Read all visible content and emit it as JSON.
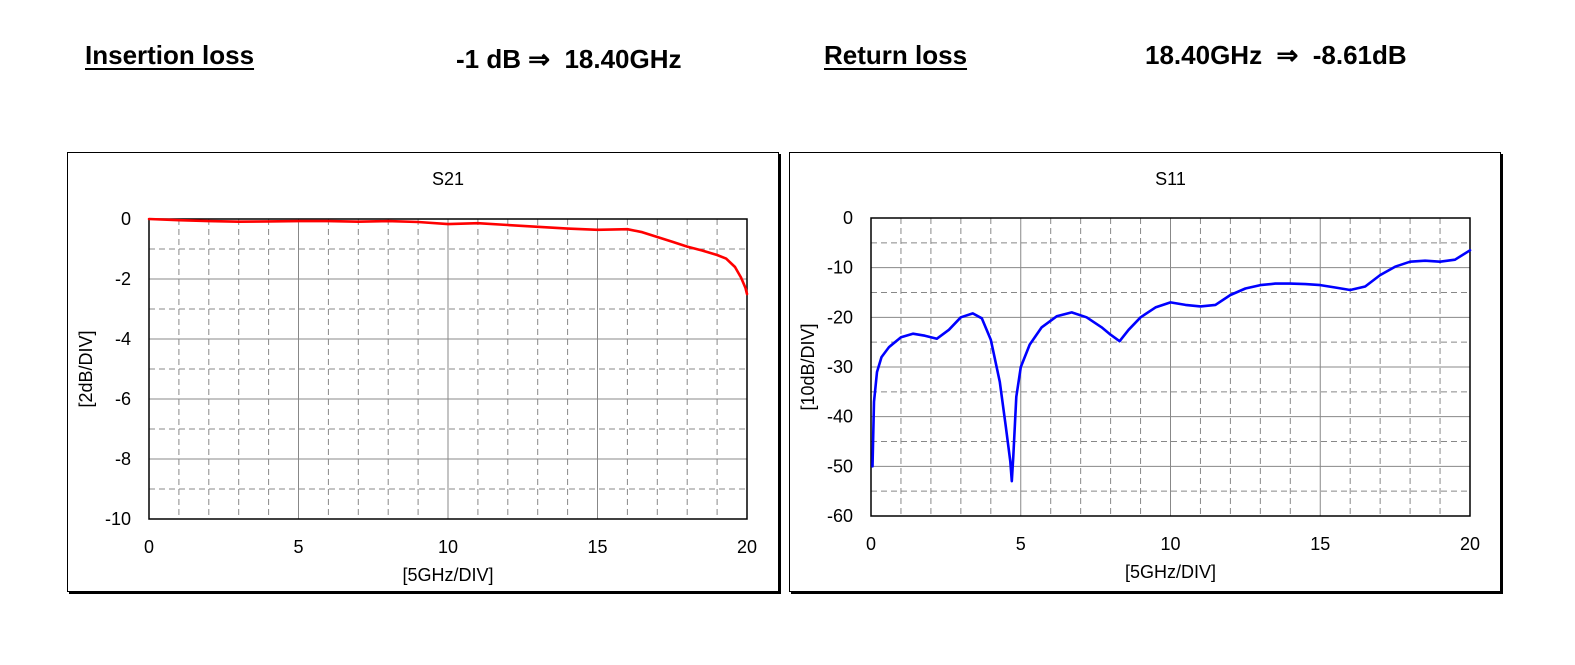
{
  "header": {
    "insertion_label": "Insertion loss",
    "insertion_value": "-1 dB ⇒  18.40GHz",
    "return_label": "Return loss",
    "return_value": "18.40GHz  ⇒  -8.61dB"
  },
  "chart_data": [
    {
      "type": "line",
      "title": "S21",
      "xlabel": "[5GHz/DIV]",
      "ylabel": "[2dB/DIV]",
      "xlim": [
        0,
        20
      ],
      "ylim": [
        -10,
        0
      ],
      "xticks": [
        "0",
        "5",
        "10",
        "15",
        "20"
      ],
      "yticks": [
        "0",
        "-2",
        "-4",
        "-6",
        "-8",
        "-10"
      ],
      "grid": true,
      "color": "#ff0000",
      "series": [
        {
          "x": [
            0,
            1,
            2,
            3,
            4,
            5,
            6,
            7,
            8,
            9,
            10,
            11,
            12,
            13,
            14,
            15,
            16,
            16.5,
            17,
            17.5,
            18,
            18.5,
            19,
            19.3,
            19.6,
            19.8,
            19.95,
            20
          ],
          "y": [
            0,
            -0.04,
            -0.07,
            -0.09,
            -0.08,
            -0.07,
            -0.07,
            -0.09,
            -0.07,
            -0.1,
            -0.17,
            -0.14,
            -0.2,
            -0.26,
            -0.32,
            -0.36,
            -0.34,
            -0.44,
            -0.6,
            -0.76,
            -0.92,
            -1.05,
            -1.2,
            -1.32,
            -1.6,
            -1.95,
            -2.3,
            -2.5
          ]
        }
      ]
    },
    {
      "type": "line",
      "title": "S11",
      "xlabel": "[5GHz/DIV]",
      "ylabel": "[10dB/DIV]",
      "xlim": [
        0,
        20
      ],
      "ylim": [
        -60,
        0
      ],
      "xticks": [
        "0",
        "5",
        "10",
        "15",
        "20"
      ],
      "yticks": [
        "0",
        "-10",
        "-20",
        "-30",
        "-40",
        "-50",
        "-60"
      ],
      "grid": true,
      "color": "#0000ff",
      "series": [
        {
          "x": [
            0.05,
            0.1,
            0.2,
            0.35,
            0.6,
            1.0,
            1.4,
            1.8,
            2.2,
            2.6,
            3.0,
            3.4,
            3.7,
            4.0,
            4.3,
            4.5,
            4.65,
            4.7,
            4.75,
            4.85,
            5.0,
            5.3,
            5.7,
            6.2,
            6.7,
            7.2,
            7.7,
            8.0,
            8.3,
            8.6,
            9.0,
            9.5,
            10.0,
            10.5,
            11.0,
            11.5,
            12.0,
            12.5,
            13.0,
            13.5,
            14.0,
            14.5,
            15.0,
            15.5,
            16.0,
            16.5,
            17.0,
            17.5,
            18.0,
            18.5,
            19.0,
            19.5,
            20.0
          ],
          "y": [
            -50,
            -37,
            -31,
            -28,
            -26,
            -24,
            -23.3,
            -23.7,
            -24.3,
            -22.5,
            -20,
            -19.2,
            -20.2,
            -24.5,
            -33,
            -42,
            -49,
            -53,
            -48,
            -36,
            -30,
            -25.5,
            -22,
            -19.8,
            -19,
            -20,
            -22,
            -23.5,
            -24.8,
            -22.5,
            -20,
            -18,
            -17,
            -17.5,
            -17.8,
            -17.5,
            -15.5,
            -14.2,
            -13.5,
            -13.2,
            -13.2,
            -13.3,
            -13.5,
            -14,
            -14.5,
            -13.8,
            -11.5,
            -9.8,
            -8.8,
            -8.6,
            -8.8,
            -8.4,
            -6.5
          ]
        }
      ]
    }
  ]
}
